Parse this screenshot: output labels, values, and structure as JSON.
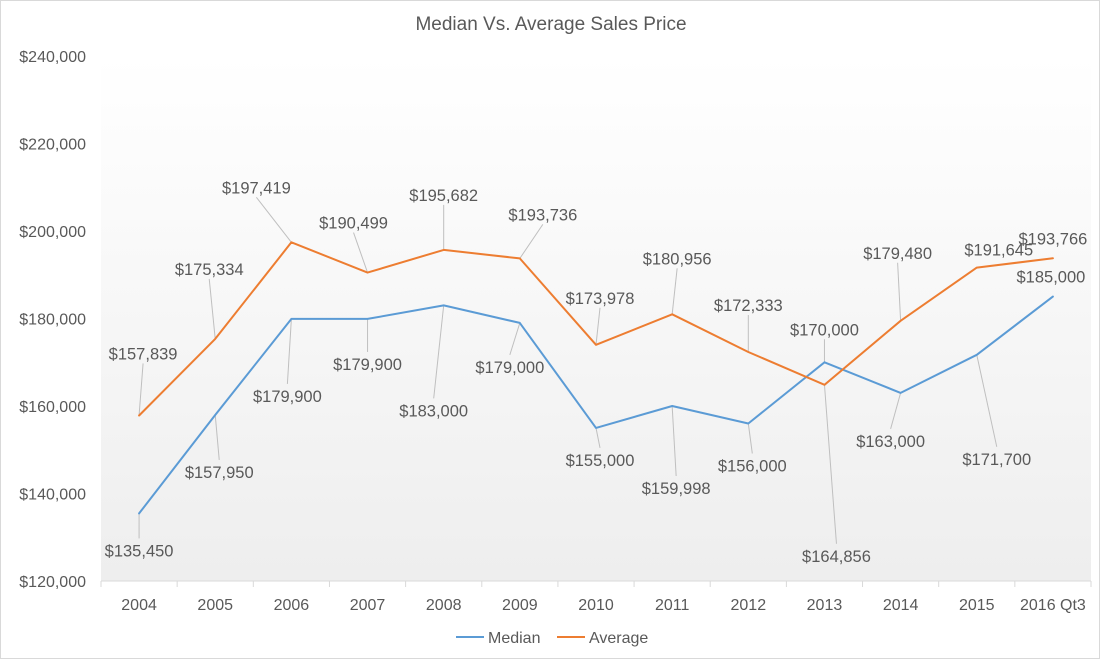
{
  "chart_data": {
    "type": "line",
    "title": "Median Vs. Average Sales Price",
    "xlabel": "",
    "ylabel": "",
    "categories": [
      "2004",
      "2005",
      "2006",
      "2007",
      "2008",
      "2009",
      "2010",
      "2011",
      "2012",
      "2013",
      "2014",
      "2015",
      "2016 Qt3"
    ],
    "ylim": [
      120000,
      240000
    ],
    "yticks": [
      120000,
      140000,
      160000,
      180000,
      200000,
      220000,
      240000
    ],
    "ytick_labels": [
      "$120,000",
      "$140,000",
      "$160,000",
      "$180,000",
      "$200,000",
      "$220,000",
      "$240,000"
    ],
    "grid": false,
    "legend_position": "bottom",
    "series": [
      {
        "name": "Median",
        "color": "#5b9bd5",
        "values": [
          135450,
          157950,
          179900,
          179900,
          183000,
          179000,
          155000,
          159998,
          156000,
          170000,
          163000,
          171700,
          185000
        ],
        "labels": [
          "$135,450",
          "$157,950",
          "$179,900",
          "$179,900",
          "$183,000",
          "$179,000",
          "$155,000",
          "$159,998",
          "$156,000",
          "$170,000",
          "$163,000",
          "$171,700",
          "$185,000"
        ]
      },
      {
        "name": "Average",
        "color": "#ed7d31",
        "values": [
          157839,
          175334,
          197419,
          190499,
          195682,
          193736,
          173978,
          180956,
          172333,
          164856,
          179480,
          191645,
          193766
        ],
        "labels": [
          "$157,839",
          "$175,334",
          "$197,419",
          "$190,499",
          "$195,682",
          "$193,736",
          "$173,978",
          "$180,956",
          "$172,333",
          "$164,856",
          "$179,480",
          "$191,645",
          "$193,766"
        ]
      }
    ]
  }
}
